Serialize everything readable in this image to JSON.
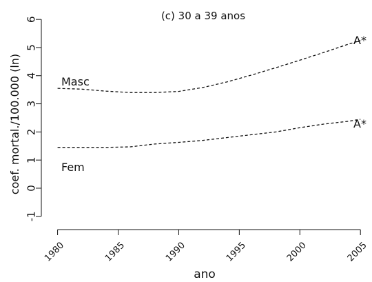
{
  "chart_data": {
    "type": "line",
    "title": "(c) 30 a 39 anos",
    "xlabel": "ano",
    "ylabel": "coef. mortal./100.000 (ln)",
    "xlim": [
      1979,
      2005.5
    ],
    "ylim": [
      -1.3,
      6.2
    ],
    "x_ticks": [
      "1980",
      "1985",
      "1990",
      "1995",
      "2000",
      "2005"
    ],
    "y_ticks": [
      "-1",
      "0",
      "1",
      "2",
      "3",
      "4",
      "5",
      "6"
    ],
    "grid": false,
    "series": [
      {
        "name": "Masc",
        "end_label": "A*",
        "line_style": "dashed",
        "x": [
          1980,
          1982,
          1984,
          1986,
          1988,
          1990,
          1992,
          1994,
          1996,
          1998,
          2000,
          2002,
          2004,
          2005
        ],
        "y": [
          3.55,
          3.52,
          3.45,
          3.4,
          3.4,
          3.44,
          3.58,
          3.78,
          4.02,
          4.28,
          4.55,
          4.83,
          5.12,
          5.25
        ]
      },
      {
        "name": "Fem",
        "end_label": "A*",
        "line_style": "dashed",
        "x": [
          1980,
          1982,
          1984,
          1986,
          1988,
          1990,
          1992,
          1994,
          1996,
          1998,
          2000,
          2002,
          2004,
          2005
        ],
        "y": [
          1.45,
          1.45,
          1.45,
          1.47,
          1.57,
          1.63,
          1.7,
          1.8,
          1.9,
          2.0,
          2.15,
          2.28,
          2.38,
          2.45
        ]
      }
    ]
  }
}
